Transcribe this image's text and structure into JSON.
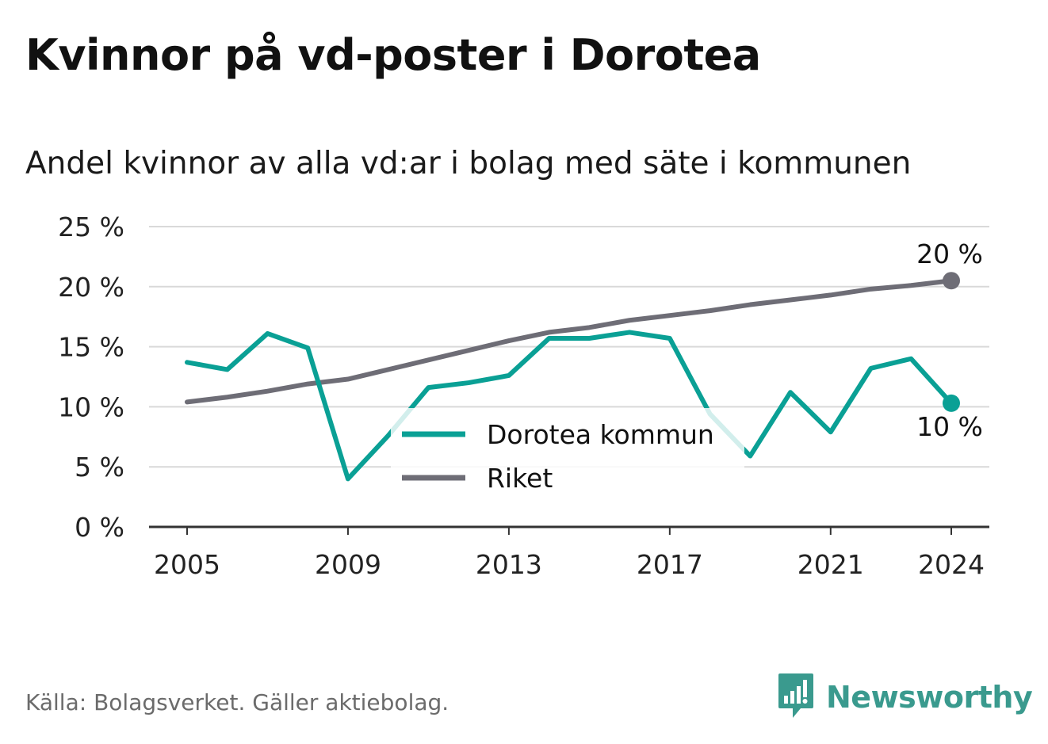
{
  "title": "Kvinnor på vd-poster i Dorotea",
  "subtitle": "Andel kvinnor av alla vd:ar i bolag med säte i kommunen",
  "source": "Källa: Bolagsverket. Gäller aktiebolag.",
  "brand": {
    "name": "Newsworthy",
    "icon": "newsworthy-logo-icon",
    "color": "#3a9a8e"
  },
  "chart_data": {
    "type": "line",
    "ylim": [
      0,
      25
    ],
    "xlim": [
      2005,
      2024
    ],
    "y_ticks": [
      0,
      5,
      10,
      15,
      20,
      25
    ],
    "y_tick_labels": [
      "0 %",
      "5 %",
      "10 %",
      "15 %",
      "20 %",
      "25 %"
    ],
    "x_ticks": [
      2005,
      2009,
      2013,
      2017,
      2021,
      2024
    ],
    "x_tick_labels": [
      "2005",
      "2009",
      "2013",
      "2017",
      "2021",
      "2024"
    ],
    "grid": true,
    "legend_position": "center",
    "series": [
      {
        "name": "Dorotea kommun",
        "color": "#0aa095",
        "x": [
          2005,
          2006,
          2007,
          2008,
          2009,
          2010,
          2011,
          2012,
          2013,
          2014,
          2015,
          2016,
          2017,
          2018,
          2019,
          2020,
          2021,
          2022,
          2023,
          2024
        ],
        "values": [
          13.7,
          13.1,
          16.1,
          14.9,
          4.0,
          7.6,
          11.6,
          12.0,
          12.6,
          15.7,
          15.7,
          16.2,
          15.7,
          9.4,
          5.9,
          11.2,
          7.9,
          13.2,
          14.0,
          10.3
        ],
        "end_label": "10 %"
      },
      {
        "name": "Riket",
        "color": "#6e6d76",
        "x": [
          2005,
          2006,
          2007,
          2008,
          2009,
          2010,
          2011,
          2012,
          2013,
          2014,
          2015,
          2016,
          2017,
          2018,
          2019,
          2020,
          2021,
          2022,
          2023,
          2024
        ],
        "values": [
          10.4,
          10.8,
          11.3,
          11.9,
          12.3,
          13.1,
          13.9,
          14.7,
          15.5,
          16.2,
          16.6,
          17.2,
          17.6,
          18.0,
          18.5,
          18.9,
          19.3,
          19.8,
          20.1,
          20.5
        ],
        "end_label": "20 %"
      }
    ]
  }
}
